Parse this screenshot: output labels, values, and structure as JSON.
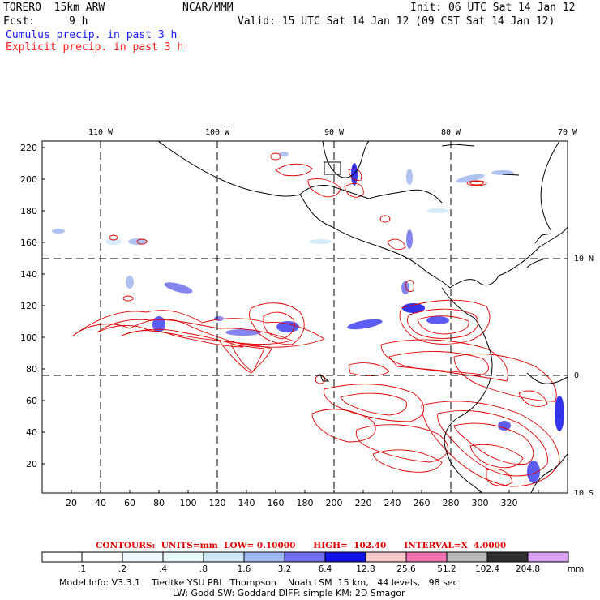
{
  "header": {
    "model": "TORERO  15km ARW",
    "org": "NCAR/MMM",
    "init": "Init: 06 UTC Sat 14 Jan 12",
    "fcst_label": "Fcst:",
    "fcst_value": "9 h",
    "valid": "Valid: 15 UTC Sat 14 Jan 12 (09 CST Sat 14 Jan 12)",
    "cumulus": "Cumulus precip. in past 3 h",
    "explicit": "Explicit precip. in past 3 h"
  },
  "map": {
    "lon_labels_top": [
      "110 W",
      "100 W",
      "90 W",
      "80 W",
      "70 W"
    ],
    "lat_labels_right": [
      "10 N",
      "0",
      "10 S"
    ],
    "x_ticks": [
      "20",
      "40",
      "60",
      "80",
      "100",
      "120",
      "140",
      "160",
      "180",
      "200",
      "220",
      "240",
      "260",
      "280",
      "300",
      "320"
    ],
    "y_ticks": [
      "20",
      "40",
      "60",
      "80",
      "100",
      "120",
      "140",
      "160",
      "180",
      "200",
      "220"
    ]
  },
  "legend": {
    "contours_text": "CONTOURS:  UNITS=mm  LOW= 0.10000      HIGH=  102.40      INTERVAL=X  4.0000",
    "bin_labels": [
      ".1",
      ".2",
      ".4",
      ".8",
      "1.6",
      "3.2",
      "6.4",
      "12.8",
      "25.6",
      "51.2",
      "102.4",
      "204.8"
    ],
    "unit": "mm",
    "colors": [
      "#ffffff",
      "#ffffff",
      "#f0f8ff",
      "#e6f8f8",
      "#cfe8f8",
      "#a0b8f0",
      "#7070f0",
      "#4040f0",
      "#1010e8",
      "#f8c8c8",
      "#f070b0",
      "#b8b8b8",
      "#303030",
      "#d8a0f0"
    ]
  },
  "footer": {
    "line1": "Model Info: V3.3.1    Tiedtke YSU PBL  Thompson    Noah LSM  15 km,   44 levels,   98 sec",
    "line2": "LW: Godd SW: Goddard DIFF: simple KM: 2D Smagor"
  }
}
